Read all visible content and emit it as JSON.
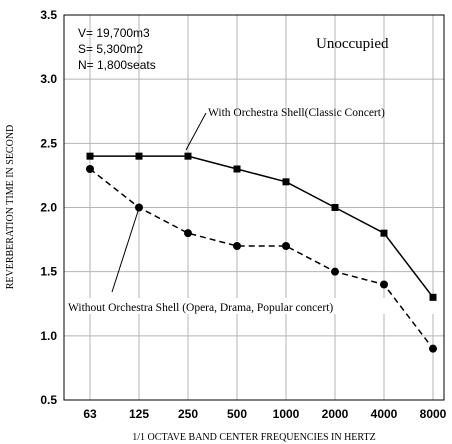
{
  "chart_data": {
    "type": "line",
    "categories": [
      "63",
      "125",
      "250",
      "500",
      "1000",
      "2000",
      "4000",
      "8000"
    ],
    "series": [
      {
        "name": "With Orchestra Shell(Classic Concert)",
        "values": [
          2.4,
          2.4,
          2.4,
          2.3,
          2.2,
          2.0,
          1.8,
          1.3
        ],
        "line_style": "solid",
        "marker": "square",
        "color": "#000000"
      },
      {
        "name": "Without Orchestra Shell (Opera, Drama, Popular concert)",
        "values": [
          2.3,
          2.0,
          1.8,
          1.7,
          1.7,
          1.5,
          1.4,
          0.9
        ],
        "line_style": "dashed",
        "marker": "circle",
        "color": "#000000"
      }
    ],
    "ylim": [
      0.5,
      3.5
    ],
    "yticks": [
      "0.5",
      "1.0",
      "1.5",
      "2.0",
      "2.5",
      "3.0",
      "3.5"
    ],
    "xlabel": "1/1 OCTAVE BAND CENTER FREQUENCIES IN HERTZ",
    "ylabel": "REVERBERATION TIME IN SECOND",
    "grid": true,
    "annotations": {
      "info_lines": [
        "V= 19,700m3",
        "S=  5,300m2",
        "N=  1,800seats"
      ],
      "condition": "Unoccupied",
      "with_shell_label": "With Orchestra Shell(Classic Concert)",
      "without_shell_label": "Without Orchestra Shell (Opera, Drama, Popular concert)"
    }
  }
}
